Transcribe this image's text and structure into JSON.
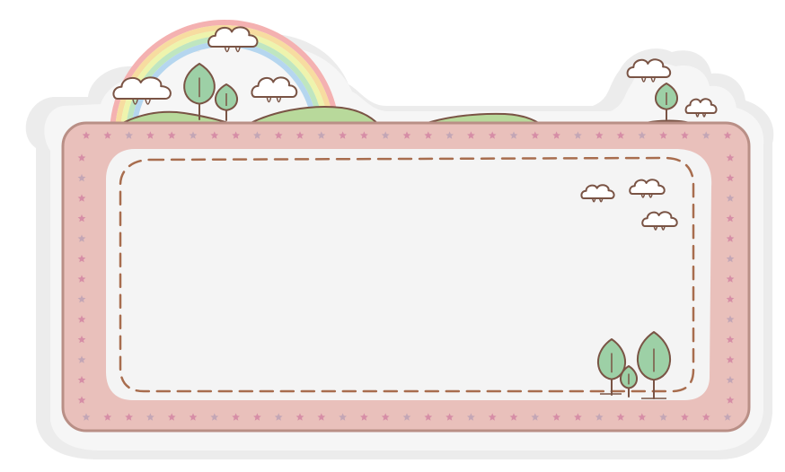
{
  "art": {
    "colors": {
      "page_background": "#ffffff",
      "sticker_shadow": "#ececec",
      "sticker_base": "#f6f6f6",
      "frame_pink": "#e9c0bb",
      "frame_border": "#b98f86",
      "star_pink": "#d487a4",
      "star_mauve": "#bfa3b6",
      "inner_panel": "#f4f4f4",
      "dashed_line": "#a86d4e",
      "hill_green": "#b8d99b",
      "tree_green": "#9dd0a6",
      "outline_brown": "#7a5445",
      "cloud_fill": "#ffffff",
      "rainbow_bands": [
        "#f4b1b1",
        "#f7dca0",
        "#eef4ad",
        "#bfe6c0",
        "#b5d6ef"
      ]
    },
    "icons": {
      "rainbow": "rainbow-icon",
      "cloud": "cloud-icon",
      "tree": "tree-icon",
      "hill": "hill-icon",
      "star": "star-icon"
    }
  }
}
